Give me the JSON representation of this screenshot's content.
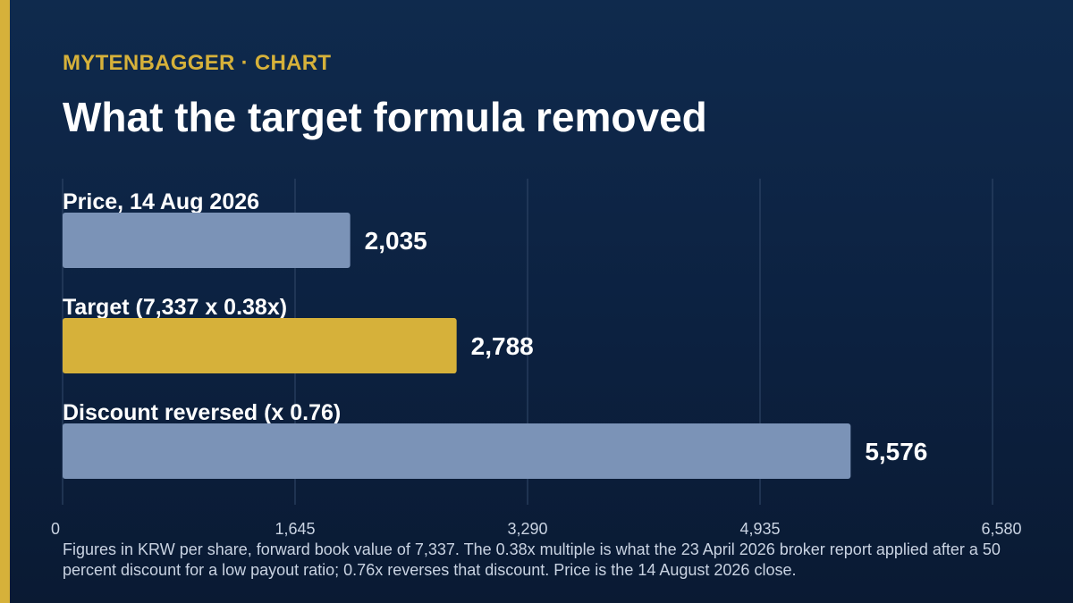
{
  "header": {
    "brand": "MYTENBAGGER · CHART",
    "title": "What the target formula removed"
  },
  "colors": {
    "accent": "#d6b13a",
    "bar_default": "#7b93b7",
    "bar_highlight": "#d6b13a",
    "grid": "#33496a",
    "tick_label": "#c9d3e2"
  },
  "chart_data": {
    "type": "bar",
    "orientation": "horizontal",
    "categories": [
      "Price, 14 Aug 2026",
      "Target (7,337 x 0.38x)",
      "Discount reversed (x 0.76)"
    ],
    "values": [
      2035,
      2788,
      5576
    ],
    "value_labels": [
      "2,035",
      "2,788",
      "5,576"
    ],
    "highlight_index": 1,
    "xlim": [
      0,
      6580
    ],
    "xticks": [
      0,
      1645,
      3290,
      4935,
      6580
    ],
    "xtick_labels": [
      "0",
      "1,645",
      "3,290",
      "4,935",
      "6,580"
    ],
    "grid": true
  },
  "footnote": "Figures in KRW per share, forward book value of 7,337. The 0.38x multiple is what the 23 April 2026 broker report applied after a 50 percent discount for a low payout ratio; 0.76x reverses that discount. Price is the 14 August 2026 close."
}
